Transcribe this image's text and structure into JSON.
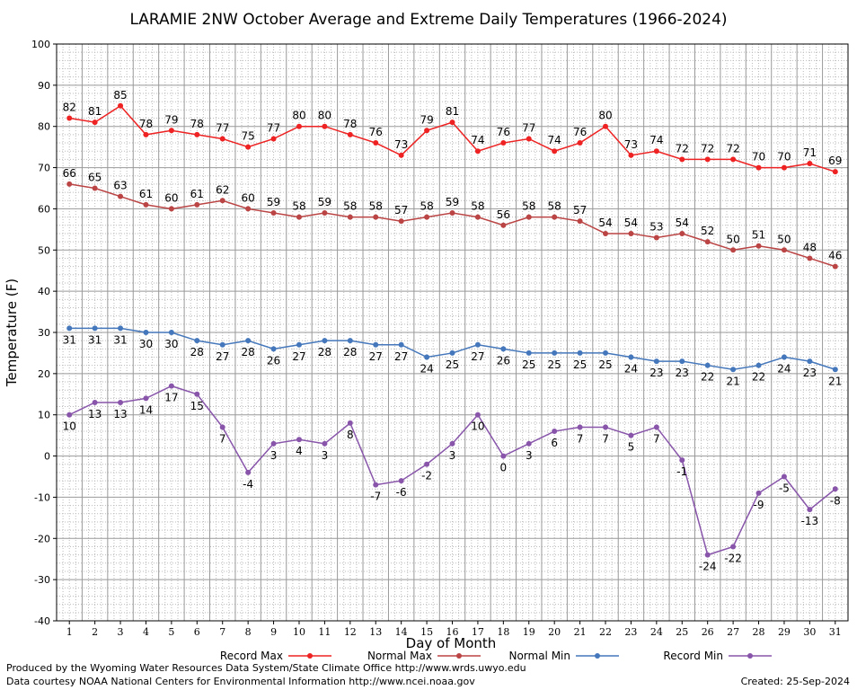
{
  "chart_data": {
    "type": "line",
    "title": "LARAMIE 2NW October Average and Extreme Daily Temperatures (1966-2024)",
    "xlabel": "Day of Month",
    "ylabel": "Temperature (F)",
    "ylim": [
      -40,
      100
    ],
    "y_ticks": [
      -40,
      -30,
      -20,
      -10,
      0,
      10,
      20,
      30,
      40,
      50,
      60,
      70,
      80,
      90,
      100
    ],
    "x": [
      1,
      2,
      3,
      4,
      5,
      6,
      7,
      8,
      9,
      10,
      11,
      12,
      13,
      14,
      15,
      16,
      17,
      18,
      19,
      20,
      21,
      22,
      23,
      24,
      25,
      26,
      27,
      28,
      29,
      30,
      31
    ],
    "grid": true,
    "legend_position": "bottom",
    "series": [
      {
        "name": "Record Max",
        "color": "#ee2222",
        "label_pos": "above",
        "values": [
          82,
          81,
          85,
          78,
          79,
          78,
          77,
          75,
          77,
          80,
          80,
          78,
          76,
          73,
          79,
          81,
          74,
          76,
          77,
          74,
          76,
          80,
          73,
          74,
          72,
          72,
          72,
          70,
          70,
          71,
          69
        ]
      },
      {
        "name": "Normal Max",
        "color": "#bb4444",
        "label_pos": "above",
        "values": [
          66,
          65,
          63,
          61,
          60,
          61,
          62,
          60,
          59,
          58,
          59,
          58,
          58,
          57,
          58,
          59,
          58,
          56,
          58,
          58,
          57,
          54,
          54,
          53,
          54,
          52,
          50,
          51,
          50,
          48,
          46
        ]
      },
      {
        "name": "Normal Min",
        "color": "#4477bb",
        "label_pos": "below",
        "values": [
          31,
          31,
          31,
          30,
          30,
          28,
          27,
          28,
          26,
          27,
          28,
          28,
          27,
          27,
          24,
          25,
          27,
          26,
          25,
          25,
          25,
          25,
          24,
          23,
          23,
          22,
          21,
          22,
          24,
          23,
          21
        ]
      },
      {
        "name": "Record Min",
        "color": "#8855aa",
        "label_pos": "below",
        "values": [
          10,
          13,
          13,
          14,
          17,
          15,
          7,
          -4,
          3,
          4,
          3,
          8,
          -7,
          -6,
          -2,
          3,
          10,
          0,
          3,
          6,
          7,
          7,
          5,
          7,
          -1,
          -24,
          -22,
          -9,
          -5,
          -13,
          -8
        ]
      }
    ]
  },
  "footer": {
    "line1": "Produced by the Wyoming Water Resources Data System/State Climate Office http://www.wrds.uwyo.edu",
    "line2": "Data courtesy NOAA National Centers for Environmental Information http://www.ncei.noaa.gov",
    "created": "Created: 25-Sep-2024"
  }
}
